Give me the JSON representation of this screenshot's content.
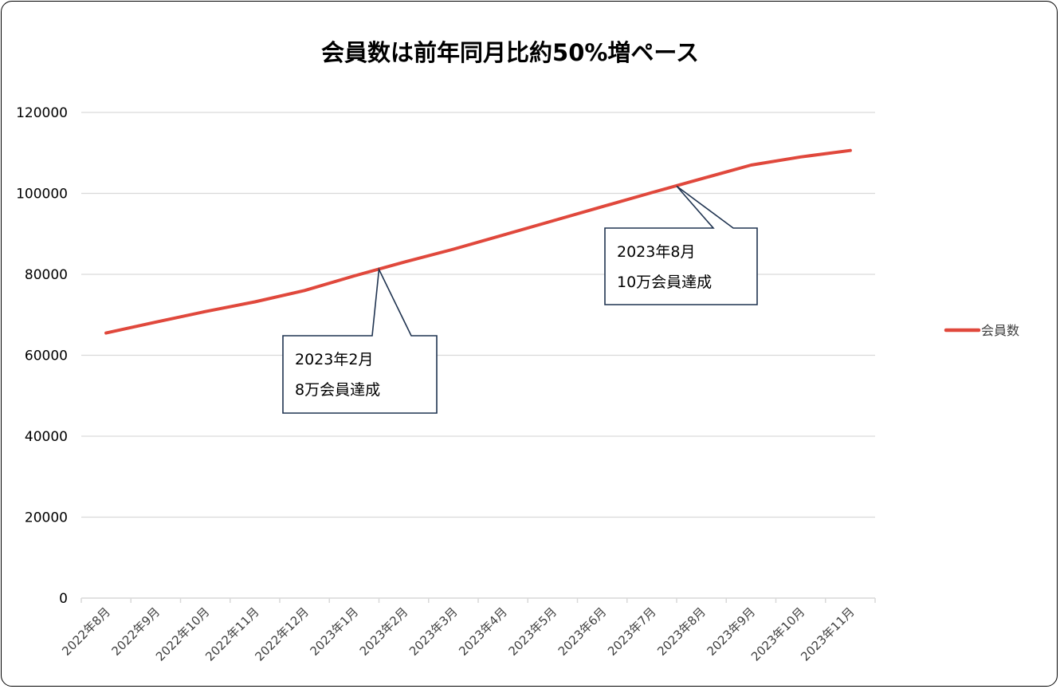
{
  "chart_data": {
    "type": "line",
    "title": "会員数は前年同月比約50%増ペース",
    "xlabel": "",
    "ylabel": "",
    "categories": [
      "2022年8月",
      "2022年9月",
      "2022年10月",
      "2022年11月",
      "2022年12月",
      "2023年1月",
      "2023年2月",
      "2023年3月",
      "2023年4月",
      "2023年5月",
      "2023年6月",
      "2023年7月",
      "2023年8月",
      "2023年9月",
      "2023年10月",
      "2023年11月"
    ],
    "series": [
      {
        "name": "会員数",
        "color": "#e0483c",
        "values": [
          65500,
          68200,
          70800,
          73200,
          76000,
          79600,
          83000,
          86200,
          89700,
          93200,
          96700,
          100200,
          103600,
          107000,
          109000,
          110600
        ]
      }
    ],
    "ylim": [
      0,
      120000
    ],
    "yticks": [
      "0",
      "20000",
      "40000",
      "60000",
      "80000",
      "100000",
      "120000"
    ],
    "grid": true,
    "legend": "right",
    "annotations": [
      {
        "lines": [
          "2023年2月",
          "8万会員達成"
        ],
        "target_index": 5.5,
        "target_value": 81200
      },
      {
        "lines": [
          "2023年8月",
          "10万会員達成"
        ],
        "target_index": 11.5,
        "target_value": 101800
      }
    ]
  }
}
